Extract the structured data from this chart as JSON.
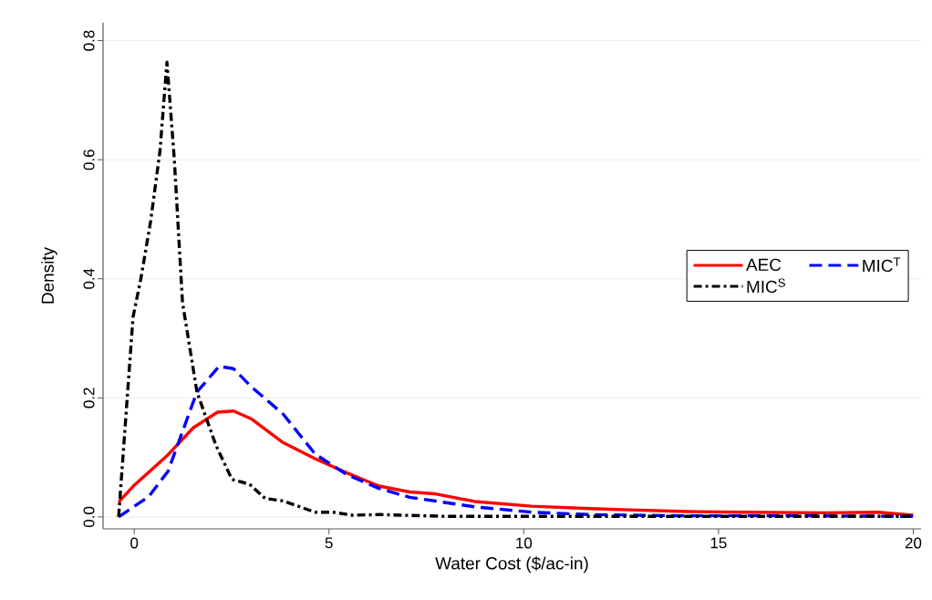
{
  "chart_data": {
    "type": "line",
    "xlabel": "Water Cost ($/ac-in)",
    "ylabel": "Density",
    "xlim": [
      -0.8,
      20.2
    ],
    "ylim": [
      -0.02,
      0.83
    ],
    "xticks": [
      0,
      5,
      10,
      15,
      20
    ],
    "yticks": [
      {
        "value": 0,
        "label": "0.0"
      },
      {
        "value": 0.2,
        "label": "0.2"
      },
      {
        "value": 0.4,
        "label": "0.4"
      },
      {
        "value": 0.6,
        "label": "0.6"
      },
      {
        "value": 0.8,
        "label": "0.8"
      }
    ],
    "grid": "y",
    "legend": "right",
    "marker": "none",
    "series": [
      {
        "name": "AEC",
        "color": "#ff0000",
        "line_style": "solid",
        "x": [
          -0.4,
          0.01,
          0.83,
          1.52,
          2.14,
          2.55,
          3.0,
          3.82,
          4.64,
          5.46,
          6.28,
          7.07,
          7.7,
          8.74,
          10.2,
          11.7,
          12.7,
          14.2,
          15.7,
          17.7,
          19.1,
          20
        ],
        "values": [
          0.025,
          0.054,
          0.102,
          0.15,
          0.176,
          0.178,
          0.165,
          0.125,
          0.098,
          0.074,
          0.052,
          0.042,
          0.039,
          0.026,
          0.018,
          0.014,
          0.012,
          0.009,
          0.008,
          0.007,
          0.008,
          0.003
        ]
      },
      {
        "name": "MIC$^{T}$",
        "color": "#0000ff",
        "line_style": "dashed",
        "x": [
          -0.4,
          0.37,
          0.87,
          1.61,
          2.18,
          2.55,
          3.0,
          3.82,
          4.64,
          5.46,
          6.28,
          7.07,
          7.7,
          8.74,
          10.2,
          11.7,
          14,
          17,
          20
        ],
        "values": [
          0.0,
          0.034,
          0.077,
          0.21,
          0.253,
          0.249,
          0.219,
          0.173,
          0.106,
          0.071,
          0.048,
          0.033,
          0.027,
          0.017,
          0.008,
          0.004,
          0.002,
          0.002,
          0.001
        ]
      },
      {
        "name": "MIC$^{S}$",
        "color": "#000000",
        "line_style": "dashdot",
        "x": [
          -0.4,
          -0.03,
          0.17,
          0.42,
          0.66,
          0.84,
          1.03,
          1.24,
          1.61,
          2.1,
          2.51,
          2.96,
          3.36,
          3.82,
          4.64,
          5.1,
          5.6,
          6.3,
          8,
          12,
          16,
          20
        ],
        "values": [
          0.0,
          0.336,
          0.4,
          0.496,
          0.614,
          0.764,
          0.6,
          0.36,
          0.21,
          0.12,
          0.063,
          0.055,
          0.031,
          0.027,
          0.008,
          0.008,
          0.003,
          0.004,
          0.001,
          0.001,
          0.001,
          0.001
        ]
      }
    ]
  }
}
